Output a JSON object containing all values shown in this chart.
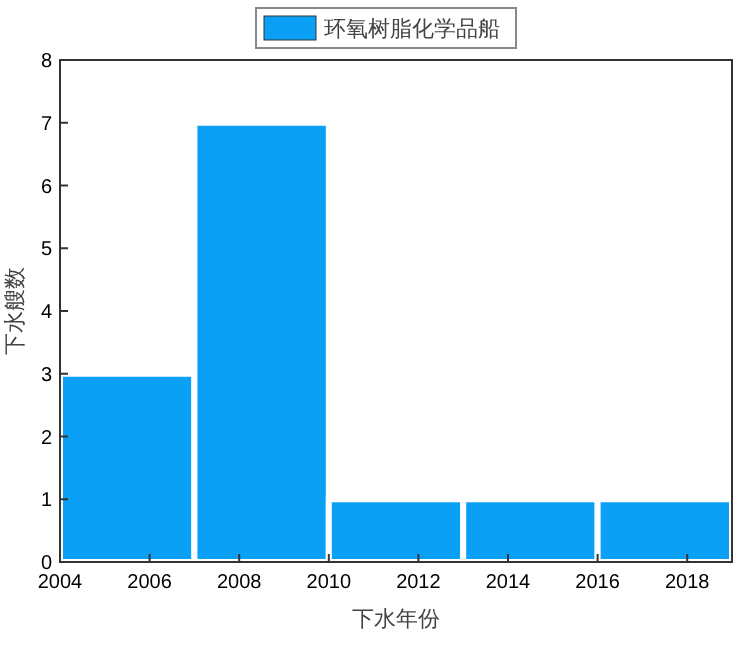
{
  "chart_data": {
    "type": "histogram",
    "xlabel": "下水年份",
    "ylabel": "下水艘数",
    "bins": [
      2004,
      2007,
      2010,
      2013,
      2016,
      2019
    ],
    "series": [
      {
        "name": "环氧树脂化学品船",
        "color": "#0aa0f5",
        "values": [
          3,
          7,
          1,
          1,
          1
        ]
      }
    ],
    "xlim": [
      2004,
      2019
    ],
    "xticks": [
      2004,
      2006,
      2008,
      2010,
      2012,
      2014,
      2016,
      2018
    ],
    "ylim": [
      0,
      8
    ],
    "yticks": [
      0,
      1,
      2,
      3,
      4,
      5,
      6,
      7,
      8
    ],
    "legend": "top"
  }
}
